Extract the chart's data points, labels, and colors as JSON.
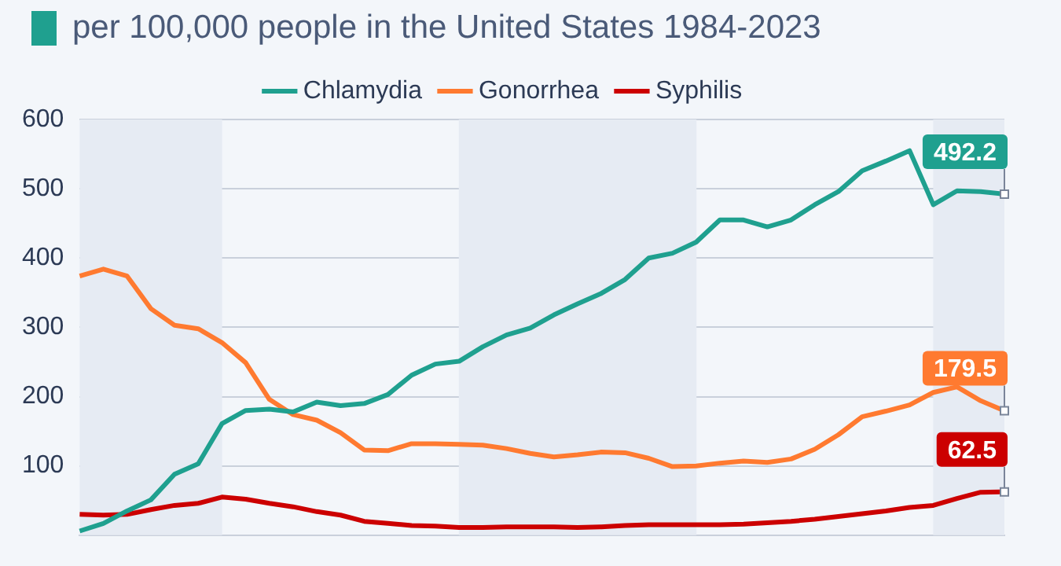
{
  "chart_data": {
    "type": "line",
    "title": "per 100,000 people in the United States 1984-2023",
    "categories": [
      null,
      null,
      null,
      null,
      null,
      null,
      null,
      null,
      null,
      null,
      null,
      null,
      null,
      null,
      null,
      null,
      null,
      null,
      null,
      null,
      null,
      null,
      null,
      null,
      null,
      null,
      null,
      null,
      null,
      null,
      null,
      null,
      null,
      null,
      null,
      null,
      null,
      null,
      null,
      null
    ],
    "series": [
      {
        "name": "Chlamydia",
        "color": "#1fa08f",
        "values": [
          6,
          17,
          35,
          51,
          88,
          103,
          161,
          180,
          182,
          178,
          192,
          187,
          190,
          203,
          231,
          247,
          251,
          272,
          289,
          299,
          318,
          334,
          349,
          369,
          400,
          407,
          423,
          455,
          455,
          445,
          455,
          477,
          496,
          526,
          540,
          555,
          477,
          497,
          496,
          492.2
        ],
        "value_labels": [
          null,
          null,
          null,
          null,
          null,
          null,
          null,
          null,
          null,
          null,
          null,
          null,
          null,
          null,
          null,
          null,
          null,
          null,
          null,
          null,
          null,
          null,
          null,
          null,
          null,
          null,
          null,
          null,
          null,
          null,
          null,
          null,
          null,
          null,
          null,
          null,
          null,
          null,
          null,
          "492.2"
        ]
      },
      {
        "name": "Gonorrhea",
        "color": "#ff7a30",
        "values": [
          374,
          384,
          374,
          327,
          303,
          298,
          278,
          249,
          196,
          174,
          166,
          148,
          123,
          122,
          132,
          132,
          131,
          130,
          125,
          118,
          113,
          116,
          120,
          119,
          111,
          99,
          100,
          104,
          107,
          105,
          110,
          124,
          145,
          171,
          179,
          188,
          206,
          214,
          194,
          179.5
        ],
        "value_labels": [
          null,
          null,
          null,
          null,
          null,
          null,
          null,
          null,
          null,
          null,
          null,
          null,
          null,
          null,
          null,
          null,
          null,
          null,
          null,
          null,
          null,
          null,
          null,
          null,
          null,
          null,
          null,
          null,
          null,
          null,
          null,
          null,
          null,
          null,
          null,
          null,
          null,
          null,
          null,
          "179.5"
        ]
      },
      {
        "name": "Syphilis",
        "color": "#cc0000",
        "values": [
          30,
          29,
          30,
          37,
          43,
          46,
          55,
          52,
          46,
          41,
          34,
          29,
          20,
          17,
          14,
          13,
          11,
          11,
          12,
          12,
          12,
          11,
          12,
          14,
          15,
          15,
          15,
          15,
          16,
          18,
          20,
          23,
          27,
          31,
          35,
          40,
          43,
          53,
          62,
          62.5
        ],
        "value_labels": [
          null,
          null,
          null,
          null,
          null,
          null,
          null,
          null,
          null,
          null,
          null,
          null,
          null,
          null,
          null,
          null,
          null,
          null,
          null,
          null,
          null,
          null,
          null,
          null,
          null,
          null,
          null,
          null,
          null,
          null,
          null,
          null,
          null,
          null,
          null,
          null,
          null,
          null,
          null,
          "62.5"
        ]
      }
    ],
    "ylim": [
      0,
      600
    ],
    "yticks": [
      100,
      200,
      300,
      400,
      500,
      600
    ],
    "grid": "y",
    "legend": "top",
    "tick_labels": "y",
    "marker": "none",
    "line_style": "solid"
  }
}
